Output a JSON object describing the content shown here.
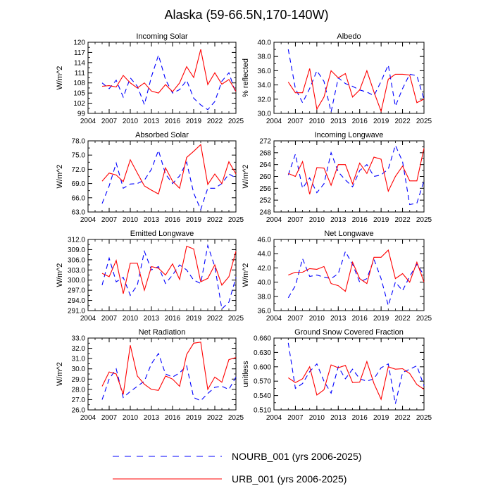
{
  "title": "Alaska (59-66.5N,170-140W)",
  "legend": [
    {
      "label": "NOURB_001 (yrs 2006-2025)",
      "color": "#0000ff",
      "style": "dashed"
    },
    {
      "label": "URB_001 (yrs 2006-2025)",
      "color": "#ff0000",
      "style": "solid"
    }
  ],
  "chart_data": [
    {
      "type": "line",
      "title": "Incoming Solar",
      "ylabel": "W/m^2",
      "xlim": [
        2004,
        2025
      ],
      "ylim": [
        99,
        120
      ],
      "xticks": [
        "2004",
        "2007",
        "2010",
        "2013",
        "2016",
        "2019",
        "2022",
        "2025"
      ],
      "yticks": [
        "99",
        "102",
        "105",
        "108",
        "111",
        "114",
        "117",
        "120"
      ],
      "x": [
        2006,
        2007,
        2008,
        2009,
        2010,
        2011,
        2012,
        2013,
        2014,
        2015,
        2016,
        2017,
        2018,
        2019,
        2020,
        2021,
        2022,
        2023,
        2024,
        2025
      ],
      "series": [
        {
          "name": "NOURB_001",
          "values": [
            108.0,
            106.3,
            108.8,
            103.8,
            109.5,
            107.0,
            101.6,
            109.8,
            116.2,
            109.0,
            105.0,
            106.0,
            108.8,
            103.5,
            101.5,
            100.1,
            102.5,
            108.5,
            111.0,
            104.8
          ]
        },
        {
          "name": "URB_001",
          "values": [
            107.0,
            107.2,
            106.8,
            110.2,
            108.0,
            106.5,
            108.0,
            105.6,
            105.0,
            107.5,
            105.4,
            108.0,
            112.8,
            109.6,
            117.9,
            107.5,
            111.0,
            107.6,
            109.0,
            105.5
          ]
        }
      ]
    },
    {
      "type": "line",
      "title": "Albedo",
      "ylabel": "% reflected",
      "xlim": [
        2004,
        2025
      ],
      "ylim": [
        30,
        40
      ],
      "xticks": [
        "2004",
        "2007",
        "2010",
        "2013",
        "2016",
        "2019",
        "2022",
        "2025"
      ],
      "yticks": [
        "30.0",
        "32.0",
        "34.0",
        "36.0",
        "38.0",
        "40.0"
      ],
      "x": [
        2006,
        2007,
        2008,
        2009,
        2010,
        2011,
        2012,
        2013,
        2014,
        2015,
        2016,
        2017,
        2018,
        2019,
        2020,
        2021,
        2022,
        2023,
        2024,
        2025
      ],
      "series": [
        {
          "name": "NOURB_001",
          "values": [
            39.0,
            33.5,
            31.5,
            33.5,
            36.0,
            34.5,
            30.2,
            35.0,
            34.2,
            33.8,
            33.3,
            33.0,
            32.5,
            34.5,
            36.8,
            31.0,
            33.5,
            35.5,
            35.3,
            32.0
          ]
        },
        {
          "name": "URB_001",
          "values": [
            34.4,
            32.9,
            32.9,
            36.3,
            30.6,
            32.3,
            36.0,
            35.0,
            35.6,
            32.3,
            33.3,
            36.0,
            33.0,
            30.3,
            34.8,
            35.5,
            35.5,
            35.4,
            31.5,
            32.0
          ]
        }
      ]
    },
    {
      "type": "line",
      "title": "Absorbed Solar",
      "ylabel": "W/m^2",
      "xlim": [
        2004,
        2025
      ],
      "ylim": [
        63,
        78
      ],
      "xticks": [
        "2004",
        "2007",
        "2010",
        "2013",
        "2016",
        "2019",
        "2022",
        "2025"
      ],
      "yticks": [
        "63.0",
        "66.0",
        "69.0",
        "72.0",
        "75.0",
        "78.0"
      ],
      "x": [
        2006,
        2007,
        2008,
        2009,
        2010,
        2011,
        2012,
        2013,
        2014,
        2015,
        2016,
        2017,
        2018,
        2019,
        2020,
        2021,
        2022,
        2023,
        2024,
        2025
      ],
      "series": [
        {
          "name": "NOURB_001",
          "values": [
            64.8,
            68.5,
            73.3,
            68.0,
            68.9,
            69.0,
            69.7,
            72.0,
            76.0,
            71.0,
            69.0,
            70.6,
            73.5,
            67.0,
            63.5,
            68.0,
            68.0,
            69.0,
            71.0,
            70.2
          ]
        },
        {
          "name": "URB_001",
          "values": [
            69.5,
            71.2,
            70.8,
            69.4,
            74.0,
            71.2,
            68.5,
            67.6,
            66.8,
            72.3,
            69.5,
            68.0,
            74.5,
            75.8,
            77.2,
            68.8,
            71.0,
            69.0,
            73.6,
            71.0
          ]
        }
      ]
    },
    {
      "type": "line",
      "title": "Incoming Longwave",
      "ylabel": "W/m^2",
      "xlim": [
        2004,
        2025
      ],
      "ylim": [
        248,
        272
      ],
      "xticks": [
        "2004",
        "2007",
        "2010",
        "2013",
        "2016",
        "2019",
        "2022",
        "2025"
      ],
      "yticks": [
        "248",
        "252",
        "256",
        "260",
        "264",
        "268",
        "272"
      ],
      "x": [
        2006,
        2007,
        2008,
        2009,
        2010,
        2011,
        2012,
        2013,
        2014,
        2015,
        2016,
        2017,
        2018,
        2019,
        2020,
        2021,
        2022,
        2023,
        2024,
        2025
      ],
      "series": [
        {
          "name": "NOURB_001",
          "values": [
            260.5,
            267.5,
            256.0,
            259.5,
            254.5,
            257.5,
            268.0,
            261.5,
            258.8,
            256.5,
            262.0,
            264.0,
            260.0,
            260.5,
            262.5,
            270.5,
            265.0,
            250.5,
            251.0,
            258.5
          ]
        },
        {
          "name": "URB_001",
          "values": [
            261.0,
            260.0,
            265.0,
            254.0,
            263.0,
            262.8,
            257.0,
            264.0,
            264.0,
            257.5,
            264.5,
            261.0,
            266.5,
            265.8,
            255.0,
            260.0,
            263.5,
            258.5,
            258.5,
            269.5
          ]
        }
      ]
    },
    {
      "type": "line",
      "title": "Emitted Longwave",
      "ylabel": "W/m^2",
      "xlim": [
        2004,
        2025
      ],
      "ylim": [
        291,
        312
      ],
      "xticks": [
        "2004",
        "2007",
        "2010",
        "2013",
        "2016",
        "2019",
        "2022",
        "2025"
      ],
      "yticks": [
        "291.0",
        "294.0",
        "297.0",
        "300.0",
        "303.0",
        "306.0",
        "309.0",
        "312.0"
      ],
      "x": [
        2006,
        2007,
        2008,
        2009,
        2010,
        2011,
        2012,
        2013,
        2014,
        2015,
        2016,
        2017,
        2018,
        2019,
        2020,
        2021,
        2022,
        2023,
        2024,
        2025
      ],
      "series": [
        {
          "name": "NOURB_001",
          "values": [
            298.5,
            306.5,
            299.5,
            300.8,
            295.5,
            298.5,
            308.5,
            303.0,
            304.0,
            299.0,
            301.5,
            304.5,
            303.0,
            300.0,
            299.0,
            310.2,
            304.0,
            291.5,
            293.5,
            300.8
          ]
        },
        {
          "name": "URB_001",
          "values": [
            302.0,
            301.0,
            305.8,
            296.0,
            305.0,
            305.0,
            297.0,
            304.0,
            303.5,
            301.5,
            304.8,
            300.2,
            310.0,
            309.2,
            299.5,
            300.5,
            304.5,
            298.5,
            301.0,
            308.5
          ]
        }
      ]
    },
    {
      "type": "line",
      "title": "Net Longwave",
      "ylabel": "W/m^2",
      "xlim": [
        2004,
        2025
      ],
      "ylim": [
        36,
        46
      ],
      "xticks": [
        "2004",
        "2007",
        "2010",
        "2013",
        "2016",
        "2019",
        "2022",
        "2025"
      ],
      "yticks": [
        "36.0",
        "38.0",
        "40.0",
        "42.0",
        "44.0",
        "46.0"
      ],
      "x": [
        2006,
        2007,
        2008,
        2009,
        2010,
        2011,
        2012,
        2013,
        2014,
        2015,
        2016,
        2017,
        2018,
        2019,
        2020,
        2021,
        2022,
        2023,
        2024,
        2025
      ],
      "series": [
        {
          "name": "NOURB_001",
          "values": [
            37.8,
            39.5,
            43.3,
            40.8,
            41.0,
            40.7,
            40.5,
            41.2,
            44.3,
            42.5,
            40.0,
            40.5,
            43.2,
            40.5,
            36.7,
            40.0,
            38.8,
            40.8,
            42.5,
            41.0
          ]
        },
        {
          "name": "URB_001",
          "values": [
            41.0,
            41.4,
            41.4,
            41.9,
            41.8,
            42.2,
            39.8,
            39.5,
            38.7,
            42.8,
            40.5,
            39.8,
            43.5,
            43.5,
            44.5,
            40.5,
            41.2,
            40.0,
            42.8,
            40.0
          ]
        }
      ]
    },
    {
      "type": "line",
      "title": "Net Radiation",
      "ylabel": "W/m^2",
      "xlim": [
        2004,
        2025
      ],
      "ylim": [
        26,
        33
      ],
      "xticks": [
        "2004",
        "2007",
        "2010",
        "2013",
        "2016",
        "2019",
        "2022",
        "2025"
      ],
      "yticks": [
        "26.0",
        "27.0",
        "28.0",
        "29.0",
        "30.0",
        "31.0",
        "32.0",
        "33.0"
      ],
      "x": [
        2006,
        2007,
        2008,
        2009,
        2010,
        2011,
        2012,
        2013,
        2014,
        2015,
        2016,
        2017,
        2018,
        2019,
        2020,
        2021,
        2022,
        2023,
        2024,
        2025
      ],
      "series": [
        {
          "name": "NOURB_001",
          "values": [
            27.0,
            29.0,
            30.0,
            27.2,
            27.8,
            28.3,
            28.8,
            30.5,
            31.5,
            29.5,
            29.2,
            29.6,
            30.3,
            27.2,
            26.9,
            27.6,
            28.2,
            28.3,
            28.0,
            29.2
          ]
        },
        {
          "name": "URB_001",
          "values": [
            28.3,
            29.7,
            29.5,
            27.5,
            32.3,
            29.3,
            28.5,
            28.0,
            27.9,
            29.3,
            29.0,
            28.3,
            31.4,
            32.5,
            32.6,
            28.0,
            29.2,
            28.7,
            30.9,
            31.1
          ]
        }
      ]
    },
    {
      "type": "line",
      "title": "Ground Snow Covered Fraction",
      "ylabel": "unitless",
      "xlim": [
        2004,
        2025
      ],
      "ylim": [
        0.51,
        0.66
      ],
      "xticks": [
        "2004",
        "2007",
        "2010",
        "2013",
        "2016",
        "2019",
        "2022",
        "2025"
      ],
      "yticks": [
        "0.510",
        "0.540",
        "0.570",
        "0.600",
        "0.630",
        "0.660"
      ],
      "x": [
        2006,
        2007,
        2008,
        2009,
        2010,
        2011,
        2012,
        2013,
        2014,
        2015,
        2016,
        2017,
        2018,
        2019,
        2020,
        2021,
        2022,
        2023,
        2024,
        2025
      ],
      "series": [
        {
          "name": "NOURB_001",
          "values": [
            0.65,
            0.555,
            0.565,
            0.59,
            0.606,
            0.57,
            0.545,
            0.6,
            0.575,
            0.595,
            0.575,
            0.57,
            0.575,
            0.598,
            0.606,
            0.523,
            0.588,
            0.595,
            0.602,
            0.56
          ]
        },
        {
          "name": "URB_001",
          "values": [
            0.577,
            0.567,
            0.575,
            0.6,
            0.541,
            0.552,
            0.604,
            0.598,
            0.603,
            0.567,
            0.568,
            0.611,
            0.565,
            0.532,
            0.6,
            0.595,
            0.596,
            0.586,
            0.563,
            0.553
          ]
        }
      ]
    }
  ]
}
